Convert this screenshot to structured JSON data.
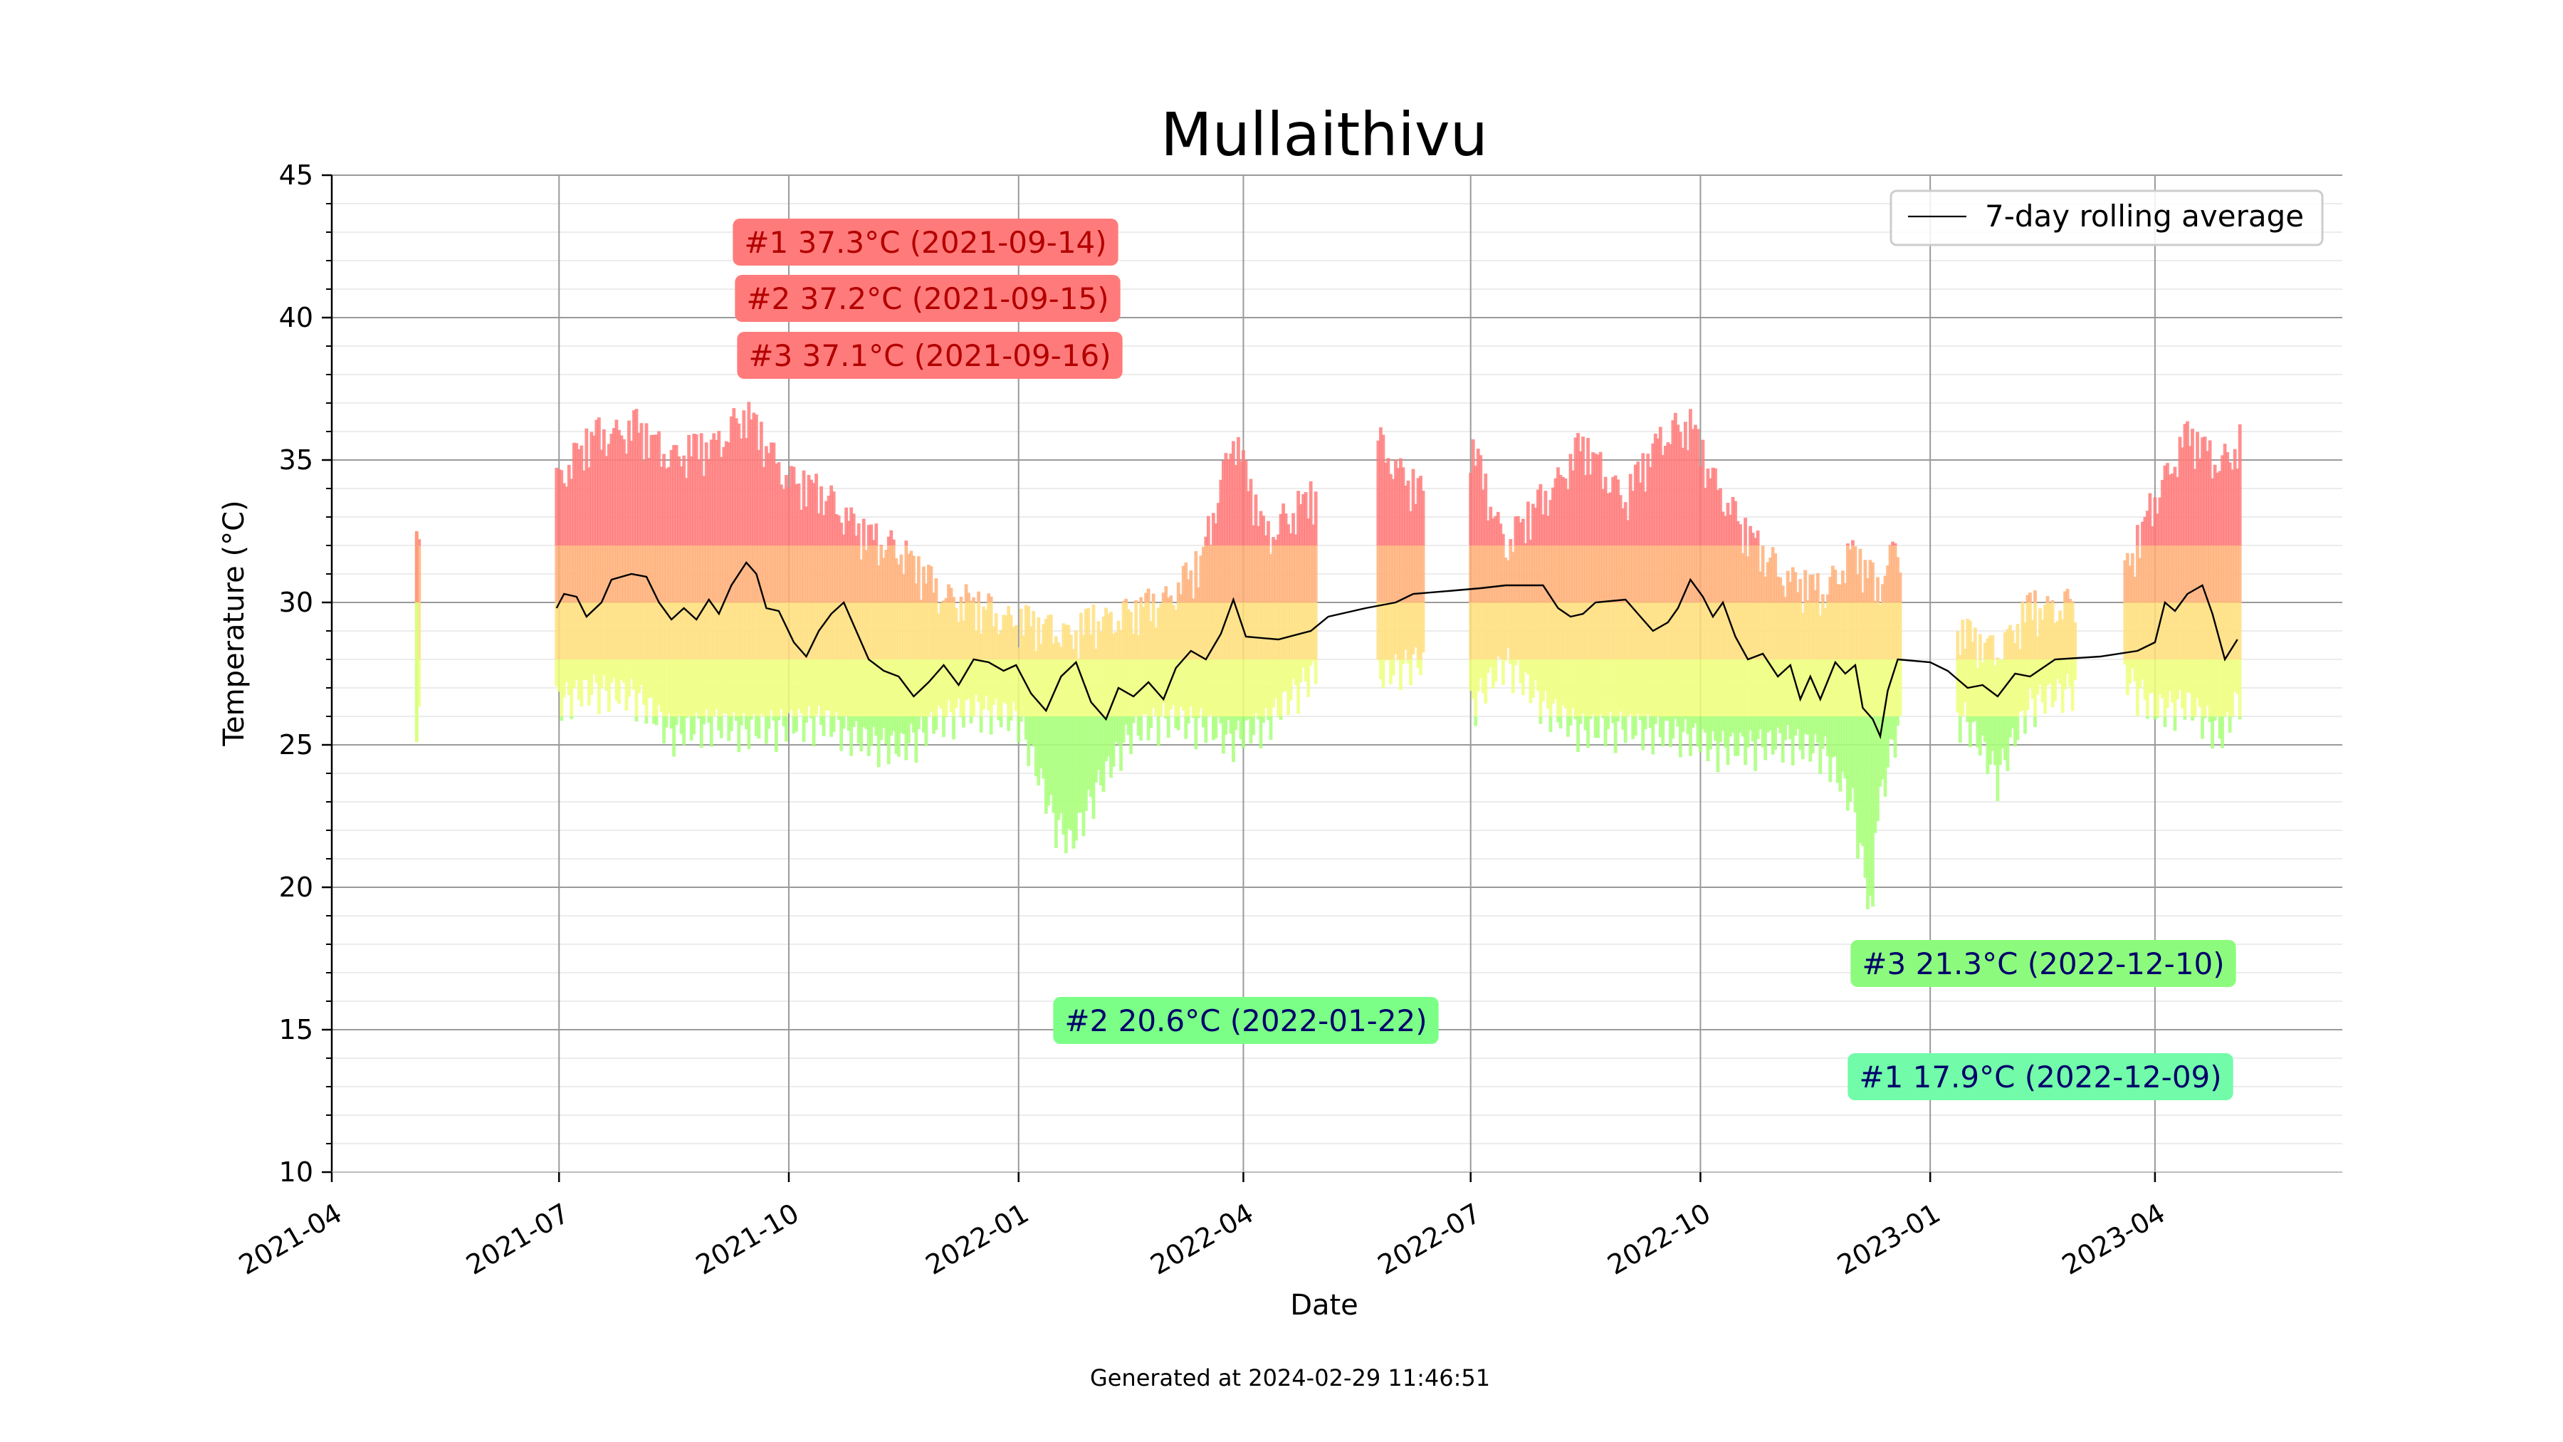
{
  "chart_data": {
    "type": "line",
    "title": "Mullaithivu",
    "xlabel": "Date",
    "ylabel": "Temperature (°C)",
    "xlim": [
      "2021-04-01",
      "2023-06-15"
    ],
    "ylim": [
      10,
      45
    ],
    "x_ticks": [
      "2021-04",
      "2021-07",
      "2021-10",
      "2022-01",
      "2022-04",
      "2022-07",
      "2022-10",
      "2023-01",
      "2023-04"
    ],
    "y_ticks": [
      "10",
      "15",
      "20",
      "25",
      "30",
      "35",
      "40",
      "45"
    ],
    "grid": "major and minor",
    "legend": {
      "position": "top-right",
      "entries": [
        "7-day rolling average"
      ]
    },
    "series": [
      {
        "name": "7-day rolling average",
        "color": "#000000",
        "points": [
          [
            "2021-06-30",
            29.8
          ],
          [
            "2021-07-03",
            30.3
          ],
          [
            "2021-07-08",
            30.2
          ],
          [
            "2021-07-12",
            29.5
          ],
          [
            "2021-07-18",
            30.0
          ],
          [
            "2021-07-22",
            30.8
          ],
          [
            "2021-07-30",
            31.0
          ],
          [
            "2021-08-05",
            30.9
          ],
          [
            "2021-08-10",
            30.0
          ],
          [
            "2021-08-15",
            29.4
          ],
          [
            "2021-08-20",
            29.8
          ],
          [
            "2021-08-25",
            29.4
          ],
          [
            "2021-08-30",
            30.1
          ],
          [
            "2021-09-03",
            29.6
          ],
          [
            "2021-09-08",
            30.6
          ],
          [
            "2021-09-14",
            31.4
          ],
          [
            "2021-09-18",
            31.0
          ],
          [
            "2021-09-22",
            29.8
          ],
          [
            "2021-09-27",
            29.7
          ],
          [
            "2021-10-03",
            28.6
          ],
          [
            "2021-10-08",
            28.1
          ],
          [
            "2021-10-13",
            29.0
          ],
          [
            "2021-10-18",
            29.6
          ],
          [
            "2021-10-23",
            30.0
          ],
          [
            "2021-10-28",
            29.0
          ],
          [
            "2021-11-02",
            28.0
          ],
          [
            "2021-11-08",
            27.6
          ],
          [
            "2021-11-14",
            27.4
          ],
          [
            "2021-11-20",
            26.7
          ],
          [
            "2021-11-26",
            27.2
          ],
          [
            "2021-12-02",
            27.8
          ],
          [
            "2021-12-08",
            27.1
          ],
          [
            "2021-12-14",
            28.0
          ],
          [
            "2021-12-20",
            27.9
          ],
          [
            "2021-12-26",
            27.6
          ],
          [
            "2021-12-31",
            27.8
          ],
          [
            "2022-01-06",
            26.8
          ],
          [
            "2022-01-12",
            26.2
          ],
          [
            "2022-01-18",
            27.4
          ],
          [
            "2022-01-24",
            27.9
          ],
          [
            "2022-01-30",
            26.5
          ],
          [
            "2022-02-05",
            25.9
          ],
          [
            "2022-02-10",
            27.0
          ],
          [
            "2022-02-16",
            26.7
          ],
          [
            "2022-02-22",
            27.2
          ],
          [
            "2022-02-28",
            26.6
          ],
          [
            "2022-03-05",
            27.7
          ],
          [
            "2022-03-11",
            28.3
          ],
          [
            "2022-03-17",
            28.0
          ],
          [
            "2022-03-23",
            28.9
          ],
          [
            "2022-03-28",
            30.1
          ],
          [
            "2022-04-02",
            28.8
          ],
          [
            "2022-04-15",
            28.7
          ],
          [
            "2022-04-28",
            29.0
          ],
          [
            "2022-05-05",
            29.5
          ],
          [
            "2022-05-20",
            29.8
          ],
          [
            "2022-06-01",
            30.0
          ],
          [
            "2022-06-08",
            30.3
          ],
          [
            "2022-06-22",
            30.4
          ],
          [
            "2022-07-05",
            30.5
          ],
          [
            "2022-07-15",
            30.6
          ],
          [
            "2022-07-30",
            30.6
          ],
          [
            "2022-08-05",
            29.8
          ],
          [
            "2022-08-10",
            29.5
          ],
          [
            "2022-08-15",
            29.6
          ],
          [
            "2022-08-20",
            30.0
          ],
          [
            "2022-09-01",
            30.1
          ],
          [
            "2022-09-08",
            29.4
          ],
          [
            "2022-09-12",
            29.0
          ],
          [
            "2022-09-18",
            29.3
          ],
          [
            "2022-09-22",
            29.8
          ],
          [
            "2022-09-27",
            30.8
          ],
          [
            "2022-10-02",
            30.2
          ],
          [
            "2022-10-06",
            29.5
          ],
          [
            "2022-10-10",
            30.0
          ],
          [
            "2022-10-15",
            28.8
          ],
          [
            "2022-10-20",
            28.0
          ],
          [
            "2022-10-26",
            28.2
          ],
          [
            "2022-11-01",
            27.4
          ],
          [
            "2022-11-06",
            27.8
          ],
          [
            "2022-11-10",
            26.6
          ],
          [
            "2022-11-14",
            27.4
          ],
          [
            "2022-11-18",
            26.6
          ],
          [
            "2022-11-24",
            27.9
          ],
          [
            "2022-11-28",
            27.5
          ],
          [
            "2022-12-02",
            27.8
          ],
          [
            "2022-12-05",
            26.3
          ],
          [
            "2022-12-09",
            25.9
          ],
          [
            "2022-12-12",
            25.3
          ],
          [
            "2022-12-15",
            26.9
          ],
          [
            "2022-12-19",
            28.0
          ],
          [
            "2023-01-01",
            27.9
          ],
          [
            "2023-01-08",
            27.6
          ],
          [
            "2023-01-16",
            27.0
          ],
          [
            "2023-01-22",
            27.1
          ],
          [
            "2023-01-28",
            26.7
          ],
          [
            "2023-02-04",
            27.5
          ],
          [
            "2023-02-10",
            27.4
          ],
          [
            "2023-02-20",
            28.0
          ],
          [
            "2023-03-10",
            28.1
          ],
          [
            "2023-03-25",
            28.3
          ],
          [
            "2023-04-01",
            28.6
          ],
          [
            "2023-04-05",
            30.0
          ],
          [
            "2023-04-09",
            29.7
          ],
          [
            "2023-04-14",
            30.3
          ],
          [
            "2023-04-20",
            30.6
          ],
          [
            "2023-04-24",
            29.6
          ],
          [
            "2023-04-29",
            28.0
          ],
          [
            "2023-05-04",
            28.7
          ]
        ]
      }
    ],
    "daily_ranges": {
      "note": "Per-day min-max temperature bars, colored by temperature (green = cool, yellow = mild, red = hot)",
      "segments": [
        [
          "2021-05-05",
          25.1,
          32.5
        ],
        [
          "2021-06-30",
          25.6,
          35.0
        ],
        [
          "2021-07-15",
          26.0,
          36.5
        ],
        [
          "2021-08-01",
          25.8,
          36.8
        ],
        [
          "2021-08-15",
          24.5,
          35.8
        ],
        [
          "2021-09-01",
          24.8,
          36.2
        ],
        [
          "2021-09-14",
          24.6,
          37.3
        ],
        [
          "2021-10-01",
          24.8,
          35.0
        ],
        [
          "2021-10-15",
          24.9,
          34.5
        ],
        [
          "2021-11-01",
          24.2,
          33.0
        ],
        [
          "2021-11-15",
          24.0,
          32.5
        ],
        [
          "2021-12-01",
          25.0,
          31.0
        ],
        [
          "2021-12-15",
          25.3,
          30.5
        ],
        [
          "2022-01-01",
          25.0,
          30.0
        ],
        [
          "2022-01-15",
          21.5,
          29.8
        ],
        [
          "2022-01-22",
          20.6,
          29.5
        ],
        [
          "2022-02-01",
          22.5,
          30.0
        ],
        [
          "2022-02-15",
          24.5,
          30.3
        ],
        [
          "2022-03-01",
          25.0,
          30.8
        ],
        [
          "2022-03-15",
          24.8,
          32.0
        ],
        [
          "2022-03-28",
          24.3,
          36.6
        ],
        [
          "2022-04-10",
          24.8,
          33.0
        ],
        [
          "2022-04-28",
          26.5,
          34.3
        ],
        [
          "2022-05-25",
          26.5,
          36.3
        ],
        [
          "2022-06-10",
          27.0,
          34.5
        ],
        [
          "2022-07-01",
          25.4,
          36.2
        ],
        [
          "2022-07-15",
          27.0,
          32.7
        ],
        [
          "2022-08-01",
          25.3,
          34.5
        ],
        [
          "2022-08-15",
          24.6,
          36.2
        ],
        [
          "2022-09-01",
          24.7,
          34.3
        ],
        [
          "2022-09-15",
          24.5,
          36.5
        ],
        [
          "2022-09-27",
          24.4,
          36.9
        ],
        [
          "2022-10-05",
          24.0,
          35.2
        ],
        [
          "2022-10-20",
          24.0,
          33.0
        ],
        [
          "2022-11-05",
          24.2,
          31.5
        ],
        [
          "2022-11-20",
          23.8,
          31.0
        ],
        [
          "2022-12-01",
          22.0,
          32.5
        ],
        [
          "2022-12-09",
          17.9,
          31.5
        ],
        [
          "2022-12-10",
          21.3,
          31.0
        ],
        [
          "2022-12-18",
          24.5,
          32.7
        ],
        [
          "2023-01-15",
          25.0,
          29.5
        ],
        [
          "2023-01-28",
          23.0,
          29.0
        ],
        [
          "2023-02-10",
          25.5,
          30.4
        ],
        [
          "2023-02-25",
          26.0,
          30.6
        ],
        [
          "2023-03-20",
          26.5,
          31.6
        ],
        [
          "2023-04-01",
          25.3,
          34.3
        ],
        [
          "2023-04-14",
          25.5,
          36.6
        ],
        [
          "2023-04-28",
          24.4,
          35.5
        ],
        [
          "2023-05-06",
          26.0,
          36.4
        ]
      ]
    },
    "annotations": [
      {
        "text": "#1 37.3°C (2021-09-14)",
        "kind": "max",
        "color": "#ff7b7b"
      },
      {
        "text": "#2 37.2°C (2021-09-15)",
        "kind": "max",
        "color": "#ff7b7b"
      },
      {
        "text": "#3 37.1°C (2021-09-16)",
        "kind": "max",
        "color": "#ff7b7b"
      },
      {
        "text": "#2 20.6°C (2022-01-22)",
        "kind": "min",
        "color": "#7bff87"
      },
      {
        "text": "#3 21.3°C (2022-12-10)",
        "kind": "min",
        "color": "#8cfb7d"
      },
      {
        "text": "#1 17.9°C (2022-12-09)",
        "kind": "min",
        "color": "#72fba8"
      }
    ]
  },
  "footer": "Generated at 2024-02-29 11:46:51"
}
